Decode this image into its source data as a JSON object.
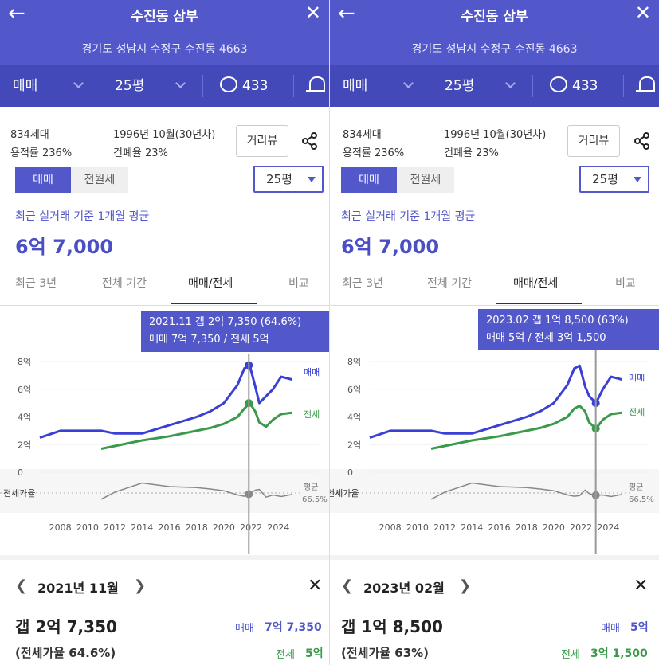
{
  "panels": [
    {
      "header": {
        "title": "수진동 삼부",
        "address": "경기도 성남시 수정구 수진동 4663",
        "trade": "매매",
        "size": "25평",
        "comments": "433"
      },
      "info": {
        "households": "834세대",
        "floor_area_ratio": "용적률 236%",
        "built": "1996년 10월(30년차)",
        "coverage_ratio": "건폐율 23%",
        "distance_view": "거리뷰"
      },
      "toggle": {
        "sale": "매매",
        "rent": "전월세",
        "size": "25평"
      },
      "average": {
        "label": "최근 실거래 기준 1개월 평균",
        "value": "6억 7,000"
      },
      "tabs": [
        "최근 3년",
        "전체 기간",
        "매매/전세",
        "비교"
      ],
      "chart": {
        "tooltip_line1": "2021.11  갭 2억 7,350 (64.6%)",
        "tooltip_line2": "매매 7억 7,350 / 전세 5억",
        "y_ticks": [
          "8억",
          "6억",
          "4억",
          "2억",
          "0"
        ],
        "x_ticks": [
          "2008",
          "2010",
          "2012",
          "2014",
          "2016",
          "2018",
          "2020",
          "2022",
          "2024"
        ],
        "series_sale": "매매",
        "series_rent": "전세",
        "ratio_label": "전세가율",
        "avg_label": "평균",
        "avg_value": "66.5%"
      },
      "detail": {
        "month": "2021년 11월",
        "gap": "갭 2억 7,350",
        "ratio": "(전세가율 64.6%)",
        "sale_label": "매매",
        "sale_value": "7억 7,350",
        "rent_label": "전세",
        "rent_value": "5억"
      }
    },
    {
      "header": {
        "title": "수진동 삼부",
        "address": "경기도 성남시 수정구 수진동 4663",
        "trade": "매매",
        "size": "25평",
        "comments": "433"
      },
      "info": {
        "households": "834세대",
        "floor_area_ratio": "용적률 236%",
        "built": "1996년 10월(30년차)",
        "coverage_ratio": "건폐율 23%",
        "distance_view": "거리뷰"
      },
      "toggle": {
        "sale": "매매",
        "rent": "전월세",
        "size": "25평"
      },
      "average": {
        "label": "최근 실거래 기준 1개월 평균",
        "value": "6억 7,000"
      },
      "tabs": [
        "최근 3년",
        "전체 기간",
        "매매/전세",
        "비교"
      ],
      "chart": {
        "tooltip_line1": "2023.02  갭 1억 8,500 (63%)",
        "tooltip_line2": "매매 5억 / 전세 3억 1,500",
        "y_ticks": [
          "8억",
          "6억",
          "4억",
          "2억",
          "0"
        ],
        "x_ticks": [
          "2008",
          "2010",
          "2012",
          "2014",
          "2016",
          "2018",
          "2020",
          "2022",
          "2024"
        ],
        "series_sale": "매매",
        "series_rent": "전세",
        "ratio_label": "전세가율",
        "avg_label": "평균",
        "avg_value": "66.5%"
      },
      "detail": {
        "month": "2023년 02월",
        "gap": "갭 1억 8,500",
        "ratio": "(전세가율 63%)",
        "sale_label": "매매",
        "sale_value": "5억",
        "rent_label": "전세",
        "rent_value": "3억 1,500"
      }
    }
  ],
  "chart_data": [
    {
      "type": "line",
      "x": [
        2006.5,
        2008,
        2010,
        2011,
        2012,
        2014,
        2016,
        2018,
        2019,
        2020,
        2021,
        2021.5,
        2021.9,
        2022.3,
        2022.6,
        2023.1,
        2023.6,
        2024.2,
        2025
      ],
      "series": [
        {
          "name": "매매",
          "values": [
            2.5,
            3.0,
            3.0,
            3.0,
            2.8,
            2.8,
            3.4,
            4.0,
            4.4,
            5.0,
            6.3,
            7.5,
            7.73,
            6.2,
            5.0,
            5.5,
            6.0,
            6.9,
            6.7
          ]
        },
        {
          "name": "전세",
          "values": [
            null,
            null,
            null,
            1.7,
            1.9,
            2.3,
            2.6,
            3.0,
            3.2,
            3.5,
            4.0,
            4.6,
            5.0,
            4.4,
            3.6,
            3.3,
            3.8,
            4.2,
            4.3
          ]
        }
      ],
      "ylim": [
        0,
        8
      ],
      "highlight": {
        "x": "2021.11",
        "sale": 7.735,
        "rent": 5.0,
        "ratio_pct": 64.6
      }
    },
    {
      "type": "line",
      "x": [
        2006.5,
        2008,
        2010,
        2011,
        2012,
        2014,
        2016,
        2018,
        2019,
        2020,
        2021,
        2021.5,
        2021.9,
        2022.3,
        2022.6,
        2023.1,
        2023.6,
        2024.2,
        2025
      ],
      "series": [
        {
          "name": "매매",
          "values": [
            2.5,
            3.0,
            3.0,
            3.0,
            2.8,
            2.8,
            3.4,
            4.0,
            4.4,
            5.0,
            6.3,
            7.5,
            7.7,
            6.2,
            5.5,
            5.0,
            6.0,
            6.9,
            6.7
          ]
        },
        {
          "name": "전세",
          "values": [
            null,
            null,
            null,
            1.7,
            1.9,
            2.3,
            2.6,
            3.0,
            3.2,
            3.5,
            4.0,
            4.6,
            4.8,
            4.4,
            3.6,
            3.15,
            3.8,
            4.2,
            4.3
          ]
        }
      ],
      "ylim": [
        0,
        8
      ],
      "highlight": {
        "x": "2023.02",
        "sale": 5.0,
        "rent": 3.15,
        "ratio_pct": 63
      }
    }
  ],
  "colors": {
    "brand": "#5257c9",
    "sale": "#3a3fd6",
    "rent": "#3a9a4a",
    "ratio": "#888888"
  }
}
